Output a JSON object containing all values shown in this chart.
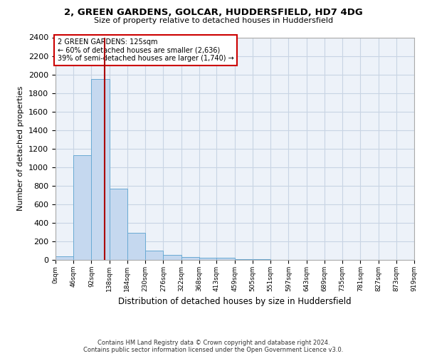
{
  "title1": "2, GREEN GARDENS, GOLCAR, HUDDERSFIELD, HD7 4DG",
  "title2": "Size of property relative to detached houses in Huddersfield",
  "xlabel": "Distribution of detached houses by size in Huddersfield",
  "ylabel": "Number of detached properties",
  "footer1": "Contains HM Land Registry data © Crown copyright and database right 2024.",
  "footer2": "Contains public sector information licensed under the Open Government Licence v3.0.",
  "annotation_line1": "2 GREEN GARDENS: 125sqm",
  "annotation_line2": "← 60% of detached houses are smaller (2,636)",
  "annotation_line3": "39% of semi-detached houses are larger (1,740) →",
  "property_size": 125,
  "bin_edges": [
    0,
    46,
    92,
    138,
    184,
    230,
    276,
    322,
    368,
    413,
    459,
    505,
    551,
    597,
    643,
    689,
    735,
    781,
    827,
    873,
    919
  ],
  "bar_heights": [
    35,
    1130,
    1950,
    770,
    295,
    100,
    50,
    30,
    25,
    25,
    10,
    5,
    3,
    2,
    1,
    1,
    0,
    0,
    0,
    0
  ],
  "bar_color": "#c5d8ef",
  "bar_edge_color": "#6aaad4",
  "red_line_color": "#aa0000",
  "annotation_box_color": "#cc0000",
  "grid_color": "#c8d4e4",
  "background_color": "#edf2f9",
  "ylim": [
    0,
    2400
  ],
  "yticks": [
    0,
    200,
    400,
    600,
    800,
    1000,
    1200,
    1400,
    1600,
    1800,
    2000,
    2200,
    2400
  ]
}
